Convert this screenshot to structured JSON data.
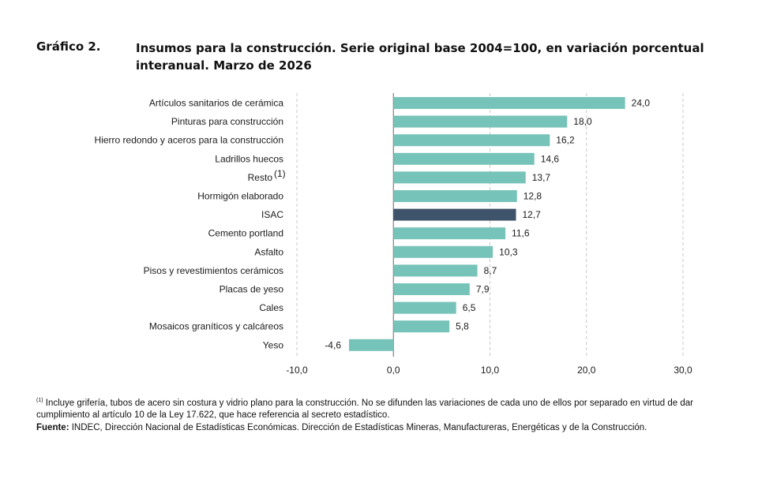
{
  "header": {
    "label": "Gráfico 2.",
    "title": "Insumos para la construcción. Serie original base 2004=100, en variación porcentual interanual. Marzo de 2026"
  },
  "chart_data": {
    "type": "bar",
    "orientation": "horizontal",
    "categories": [
      "Artículos sanitarios de cerámica",
      "Pinturas para construcción",
      "Hierro redondo y aceros para la construcción",
      "Ladrillos huecos",
      "Resto",
      "Hormigón elaborado",
      "ISAC",
      "Cemento portland",
      "Asfalto",
      "Pisos y revestimientos cerámicos",
      "Placas de yeso",
      "Cales",
      "Mosaicos graníticos y calcáreos",
      "Yeso"
    ],
    "category_superscripts": [
      "",
      "",
      "",
      "",
      "(1)",
      "",
      "",
      "",
      "",
      "",
      "",
      "",
      "",
      ""
    ],
    "values": [
      24.0,
      18.0,
      16.2,
      14.6,
      13.7,
      12.8,
      12.7,
      11.6,
      10.3,
      8.7,
      7.9,
      6.5,
      5.8,
      -4.6
    ],
    "value_labels": [
      "24,0",
      "18,0",
      "16,2",
      "14,6",
      "13,7",
      "12,8",
      "12,7",
      "11,6",
      "10,3",
      "8,7",
      "7,9",
      "6,5",
      "5,8",
      "-4,6"
    ],
    "highlight_category": "ISAC",
    "xlim": [
      -10,
      30
    ],
    "xticks": [
      -10,
      0,
      10,
      20,
      30
    ],
    "xtick_labels": [
      "-10,0",
      "0,0",
      "10,0",
      "20,0",
      "30,0"
    ],
    "grid": "vertical dashed",
    "colors": {
      "bar": "#76c3b9",
      "highlight": "#3f536b",
      "grid": "#c8c8c8",
      "axis": "#666666"
    }
  },
  "notes": {
    "footnote_marker": "(1)",
    "footnote": "Incluye grifería, tubos de acero sin costura y vidrio plano para la construcción. No se difunden las variaciones de cada uno de ellos por separado en virtud de dar cumplimiento al artículo 10 de la Ley 17.622, que hace referencia al secreto estadístico.",
    "source_label": "Fuente:",
    "source": "INDEC, Dirección Nacional de Estadísticas Económicas. Dirección de Estadísticas Mineras, Manufactureras, Energéticas y de la Construcción."
  }
}
